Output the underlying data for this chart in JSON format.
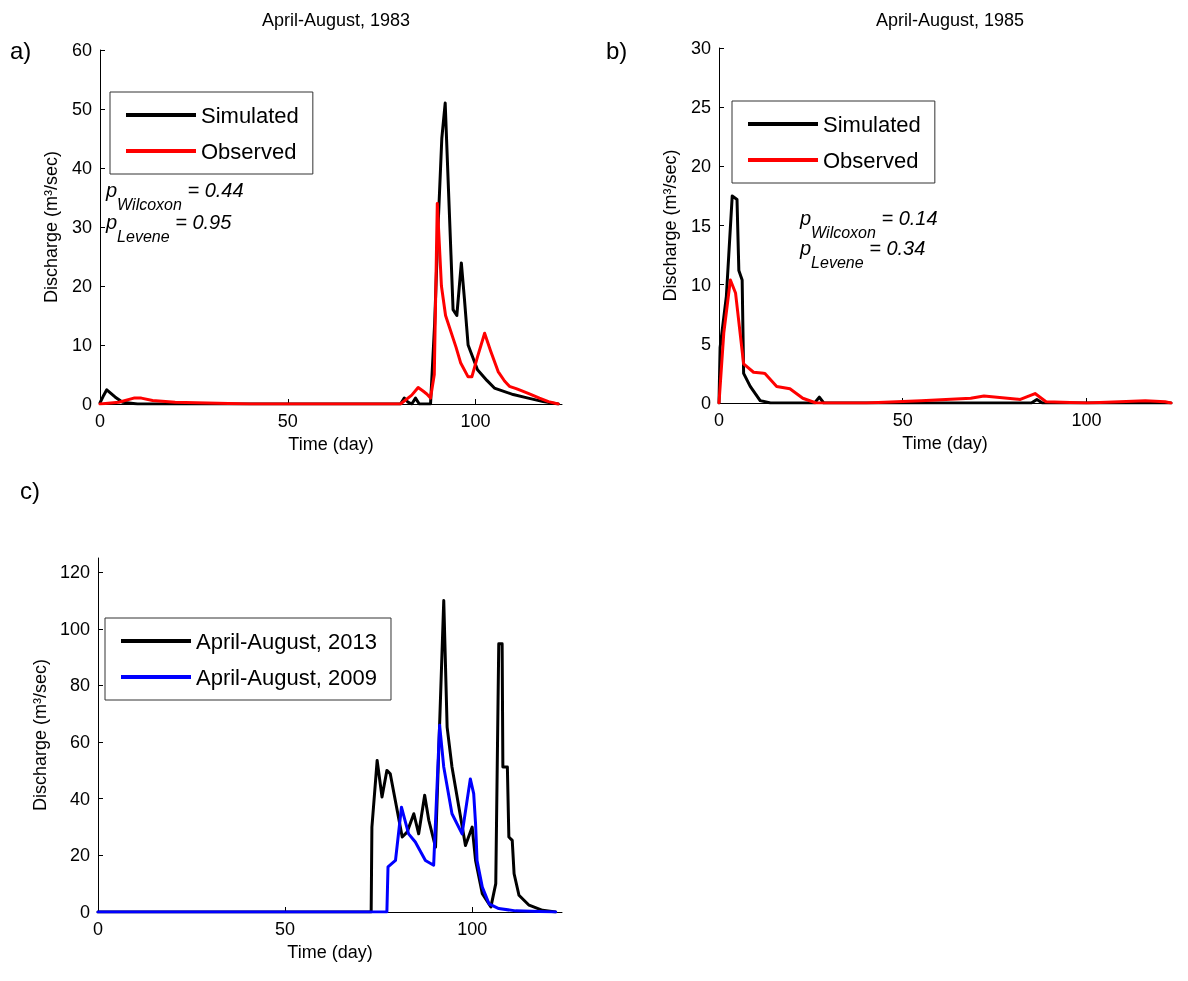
{
  "chart_data": [
    {
      "type": "line",
      "title": "April-August, 1983",
      "xlabel": "Time (day)",
      "ylabel": "Discharge (m³/sec)",
      "annotations": [
        "a)",
        "p$_{Wilcoxon}$ = 0.44",
        "p$_{Levene}$ = 0.95"
      ],
      "xlim": [
        0,
        123
      ],
      "ylim": [
        0,
        60
      ],
      "xticks": [
        0,
        50,
        100
      ],
      "yticks": [
        0,
        10,
        20,
        30,
        40,
        50,
        60
      ],
      "grid": false,
      "legend": "top left",
      "marker": "none",
      "line_style": "solid",
      "series": [
        {
          "name": "Simulated",
          "color": "#000000",
          "x": [
            0,
            1,
            1.8,
            4,
            6,
            10,
            30,
            60,
            80,
            81,
            82,
            83,
            84,
            85,
            88,
            89.1,
            90,
            91,
            91.9,
            94,
            95,
            96.2,
            97,
            98,
            100.5,
            103,
            105,
            110,
            114,
            118,
            122
          ],
          "values": [
            0.2,
            1.5,
            2.4,
            1.2,
            0.3,
            0,
            0,
            0,
            0,
            1,
            0.3,
            0,
            1,
            0,
            0,
            13.7,
            30,
            45,
            51,
            16,
            15,
            23.9,
            18,
            10,
            5.8,
            4,
            2.7,
            1.6,
            1,
            0.4,
            0
          ]
        },
        {
          "name": "Observed",
          "color": "#ff0000",
          "x": [
            0,
            5,
            9,
            11,
            14,
            20,
            40,
            80,
            83,
            84.7,
            86,
            87,
            88,
            89,
            89.8,
            90.9,
            92,
            94.8,
            96,
            98,
            99,
            100.5,
            102.4,
            104,
            106,
            107.7,
            109,
            110.8,
            112,
            114,
            117,
            119.4,
            122
          ],
          "values": [
            0,
            0.3,
            1,
            1,
            0.6,
            0.3,
            0,
            0,
            1.5,
            2.8,
            2.2,
            1.7,
            1,
            5,
            34,
            20,
            15,
            9.6,
            7,
            4.6,
            4.6,
            8,
            12,
            9,
            5.5,
            3.9,
            3,
            2.6,
            2.3,
            1.8,
            1,
            0.4,
            0
          ]
        }
      ]
    },
    {
      "type": "line",
      "title": "April-August, 1985",
      "xlabel": "Time (day)",
      "ylabel": "Discharge (m³/sec)",
      "annotations": [
        "b)",
        "p$_{Wilcoxon}$ = 0.14",
        "p$_{Levene}$ = 0.34"
      ],
      "xlim": [
        0,
        123
      ],
      "ylim": [
        0,
        30
      ],
      "xticks": [
        0,
        50,
        100
      ],
      "yticks": [
        0,
        5,
        10,
        15,
        20,
        25,
        30
      ],
      "grid": false,
      "legend": "top left",
      "marker": "none",
      "line_style": "solid",
      "series": [
        {
          "name": "Simulated",
          "color": "#000000",
          "x": [
            0,
            0.3,
            2,
            3.6,
            4.9,
            5.4,
            6.3,
            6.7,
            8.5,
            11.2,
            14,
            26,
            27.3,
            28.5,
            30,
            85,
            86.5,
            88,
            123
          ],
          "values": [
            0,
            4.7,
            9,
            17.5,
            17.2,
            11.2,
            10.4,
            2.5,
            1.4,
            0.2,
            0,
            0,
            0.5,
            0,
            0,
            0,
            0.3,
            0,
            0
          ]
        },
        {
          "name": "Observed",
          "color": "#ff0000",
          "x": [
            0,
            1.3,
            3.1,
            4.5,
            6.7,
            9.4,
            12.5,
            15.7,
            19.3,
            22.8,
            26.4,
            40,
            55,
            68.5,
            72.1,
            82,
            86,
            89,
            100,
            109,
            116,
            121.4,
            123
          ],
          "values": [
            0,
            5.9,
            10.4,
            9.3,
            3.3,
            2.6,
            2.5,
            1.4,
            1.2,
            0.4,
            0,
            0,
            0.2,
            0.4,
            0.6,
            0.3,
            0.8,
            0.1,
            0,
            0.1,
            0.2,
            0.1,
            0
          ]
        }
      ]
    },
    {
      "type": "line",
      "xlabel": "Time (day)",
      "ylabel": "Discharge (m³/sec)",
      "annotations": [
        "c)"
      ],
      "xlim": [
        0,
        124
      ],
      "ylim": [
        0,
        125
      ],
      "xticks": [
        0,
        50,
        100
      ],
      "yticks": [
        0,
        20,
        40,
        60,
        80,
        100,
        120
      ],
      "grid": false,
      "legend": "top left",
      "marker": "none",
      "line_style": "solid",
      "series": [
        {
          "name": "April-August, 2013",
          "color": "#000000",
          "x": [
            0,
            73,
            73.2,
            74.6,
            75.9,
            77.2,
            78.1,
            81.3,
            82.6,
            84.4,
            85.7,
            87.3,
            88.4,
            90.2,
            92.4,
            93.3,
            94.6,
            98.2,
            100,
            100.9,
            102.7,
            105,
            106.3,
            107.1,
            108,
            108.2,
            109.4,
            109.8,
            110.7,
            111.2,
            112.5,
            115.2,
            118.8,
            122.3
          ],
          "values": [
            0,
            0,
            30,
            53.5,
            40.6,
            50,
            48.8,
            26.5,
            28.2,
            34.7,
            27.6,
            41.2,
            32.4,
            22.9,
            110,
            65.3,
            51.2,
            23.5,
            30,
            18.2,
            6.5,
            1.8,
            10,
            94.7,
            94.7,
            51.2,
            51.2,
            26.5,
            25.3,
            13.5,
            5.9,
            2.4,
            0.6,
            0
          ]
        },
        {
          "name": "April-August, 2009",
          "color": "#0000ff",
          "x": [
            0,
            77.2,
            77.5,
            79.5,
            81.1,
            83,
            84.8,
            87.5,
            89.7,
            91.3,
            92.4,
            94.6,
            97.3,
            99.5,
            100.4,
            100.9,
            101.3,
            102.7,
            104.5,
            107.1,
            111.6,
            122.3
          ],
          "values": [
            0,
            0,
            15.9,
            18.2,
            37,
            27.6,
            24.7,
            18.2,
            16.5,
            65.9,
            51.2,
            34.7,
            27.6,
            47,
            41.8,
            31.2,
            18.2,
            8.8,
            2.9,
            1.2,
            0.4,
            0
          ]
        }
      ]
    }
  ]
}
